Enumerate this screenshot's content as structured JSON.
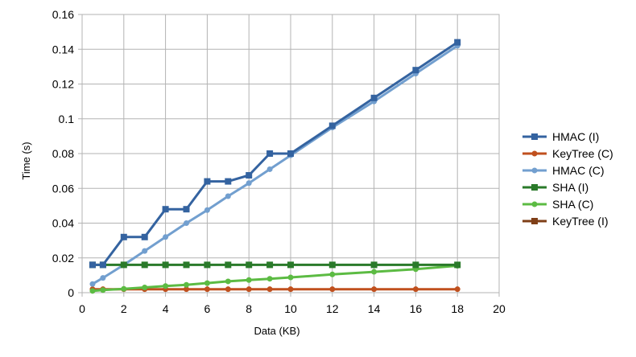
{
  "chart_data": {
    "type": "line",
    "xlabel": "Data (KB)",
    "ylabel": "Time (s)",
    "xlim": [
      0,
      20
    ],
    "ylim": [
      0,
      0.16
    ],
    "x_ticks": [
      "0",
      "2",
      "4",
      "6",
      "8",
      "10",
      "12",
      "14",
      "16",
      "18",
      "20"
    ],
    "y_ticks": [
      "0",
      "0.02",
      "0.04",
      "0.06",
      "0.08",
      "0.1",
      "0.12",
      "0.14",
      "0.16"
    ],
    "grid": true,
    "legend_position": "right",
    "series": [
      {
        "name": "HMAC (I)",
        "color": "#3463a0",
        "marker": "square",
        "x": [
          0.5,
          1,
          2,
          3,
          4,
          5,
          6,
          7,
          8,
          9,
          10,
          12,
          14,
          16,
          18
        ],
        "y": [
          0.016,
          0.016,
          0.032,
          0.032,
          0.048,
          0.048,
          0.064,
          0.064,
          0.0675,
          0.08,
          0.08,
          0.096,
          0.112,
          0.128,
          0.144
        ]
      },
      {
        "name": "KeyTree (C)",
        "color": "#c0501e",
        "marker": "circle",
        "x": [
          0.5,
          1,
          2,
          3,
          4,
          5,
          6,
          7,
          8,
          9,
          10,
          12,
          14,
          16,
          18
        ],
        "y": [
          0.002,
          0.002,
          0.002,
          0.002,
          0.002,
          0.002,
          0.002,
          0.002,
          0.002,
          0.002,
          0.002,
          0.002,
          0.002,
          0.002,
          0.002
        ]
      },
      {
        "name": "HMAC (C)",
        "color": "#729fcf",
        "marker": "circle",
        "x": [
          0.5,
          1,
          2,
          3,
          4,
          5,
          6,
          7,
          8,
          9,
          10,
          12,
          14,
          16,
          18
        ],
        "y": [
          0.005,
          0.0085,
          0.016,
          0.024,
          0.032,
          0.04,
          0.0475,
          0.0555,
          0.063,
          0.071,
          0.079,
          0.095,
          0.11,
          0.126,
          0.142
        ]
      },
      {
        "name": "SHA (I)",
        "color": "#2a7a2a",
        "marker": "square",
        "x": [
          0.5,
          1,
          2,
          3,
          4,
          5,
          6,
          7,
          8,
          9,
          10,
          12,
          14,
          16,
          18
        ],
        "y": [
          0.016,
          0.016,
          0.016,
          0.016,
          0.016,
          0.016,
          0.016,
          0.016,
          0.016,
          0.016,
          0.016,
          0.016,
          0.016,
          0.016,
          0.016
        ]
      },
      {
        "name": "SHA (C)",
        "color": "#5cbb43",
        "marker": "circle",
        "x": [
          0.5,
          1,
          2,
          3,
          4,
          5,
          6,
          7,
          8,
          9,
          10,
          12,
          14,
          16,
          18
        ],
        "y": [
          0.001,
          0.0015,
          0.0022,
          0.003,
          0.0038,
          0.0045,
          0.0055,
          0.0065,
          0.0073,
          0.008,
          0.0088,
          0.0105,
          0.012,
          0.0135,
          0.0155
        ]
      },
      {
        "name": "KeyTree (I)",
        "color": "#7f3f17",
        "marker": "square",
        "x": [],
        "y": []
      }
    ]
  }
}
